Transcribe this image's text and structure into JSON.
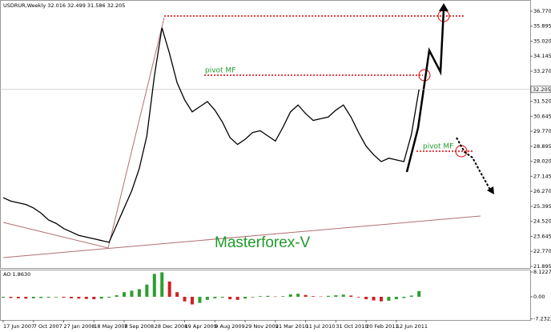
{
  "chart_data": {
    "type": "line",
    "title": "USDRUR,Weekly  32.016 32.499 31.586 32.205",
    "current_price": {
      "value": 32.205,
      "label": "32.205"
    },
    "annotations": [
      "pivot MF",
      "pivot MF",
      "Masterforex-V"
    ],
    "x": [
      "17 Jun 2007",
      null,
      null,
      null,
      "7 Oct 2007",
      null,
      null,
      null,
      "27 Jan 2008",
      null,
      null,
      null,
      "18 May 2008",
      null,
      null,
      null,
      "7 Sep 2008",
      null,
      null,
      null,
      "28 Dec 2008",
      null,
      null,
      null,
      "19 Apr 2009",
      null,
      null,
      null,
      "9 Aug 2009",
      null,
      null,
      null,
      "29 Nov 2009",
      null,
      null,
      null,
      "21 Mar 2010",
      null,
      null,
      null,
      "11 Jul 2010",
      null,
      null,
      null,
      "31 Oct 2010",
      null,
      null,
      null,
      "20 Feb 2011",
      null,
      null,
      null,
      "12 Jun 2011",
      null,
      null,
      null
    ],
    "series": [
      {
        "name": "USDRUR",
        "color": "#000000",
        "values": [
          25.9,
          25.7,
          25.6,
          25.5,
          25.3,
          25.0,
          24.6,
          24.4,
          24.1,
          23.9,
          23.7,
          23.6,
          23.5,
          23.4,
          23.3,
          24.3,
          25.3,
          26.3,
          27.6,
          29.5,
          33.0,
          35.8,
          34.3,
          32.6,
          31.6,
          30.9,
          31.2,
          31.5,
          31.0,
          30.3,
          29.4,
          29.0,
          29.3,
          29.7,
          29.8,
          29.5,
          29.2,
          30.0,
          30.9,
          31.3,
          30.8,
          30.4,
          30.5,
          30.6,
          31.0,
          31.3,
          30.6,
          29.7,
          28.9,
          28.4,
          28.0,
          28.2,
          28.1,
          28.0,
          29.6,
          32.205
        ]
      }
    ],
    "ylim": [
      21.8,
      37.42
    ],
    "yticks": [
      {
        "value": 36.77,
        "label": "36.770"
      },
      {
        "value": 35.895,
        "label": "35.895"
      },
      {
        "value": 35.02,
        "label": "35.020"
      },
      {
        "value": 34.145,
        "label": "34.145"
      },
      {
        "value": 33.27,
        "label": "33.270"
      },
      {
        "value": 31.52,
        "label": "31.520"
      },
      {
        "value": 30.645,
        "label": "30.645"
      },
      {
        "value": 29.77,
        "label": "29.770"
      },
      {
        "value": 28.895,
        "label": "28.895"
      },
      {
        "value": 28.02,
        "label": "28.020"
      },
      {
        "value": 27.145,
        "label": "27.145"
      },
      {
        "value": 26.27,
        "label": "26.270"
      },
      {
        "value": 25.395,
        "label": "25.395"
      },
      {
        "value": 24.52,
        "label": "24.520"
      },
      {
        "value": 23.645,
        "label": "23.645"
      },
      {
        "value": 22.77,
        "label": "22.770"
      },
      {
        "value": 21.895,
        "label": "21.895"
      }
    ],
    "ao": {
      "label": "AO 1.8630",
      "up_color": "#2e9e2e",
      "down_color": "#d02020",
      "values": [
        -0.3,
        -0.4,
        -0.5,
        -0.6,
        -0.5,
        -0.4,
        -0.3,
        -0.2,
        -0.3,
        -0.5,
        -0.6,
        -0.7,
        -0.8,
        -0.6,
        -0.3,
        0.5,
        1.5,
        2.0,
        2.5,
        4.0,
        7.5,
        8.0,
        5.0,
        1.5,
        -1.5,
        -2.5,
        -2.0,
        -1.0,
        -0.5,
        -0.3,
        -0.8,
        -1.0,
        -0.6,
        -0.2,
        0.2,
        0.3,
        0.1,
        0.2,
        0.8,
        1.0,
        0.6,
        0.2,
        0.1,
        0.3,
        0.5,
        0.7,
        0.4,
        -0.2,
        -0.8,
        -1.2,
        -1.5,
        -1.3,
        -0.8,
        -0.4,
        0.4,
        1.863
      ],
      "ylim": [
        -7.6,
        8.9
      ],
      "yticks": [
        {
          "value": 8.1227,
          "label": "8.1227"
        },
        {
          "value": 0,
          "label": "0.00"
        },
        {
          "value": -7.2322,
          "label": "-7.2322"
        }
      ]
    }
  }
}
